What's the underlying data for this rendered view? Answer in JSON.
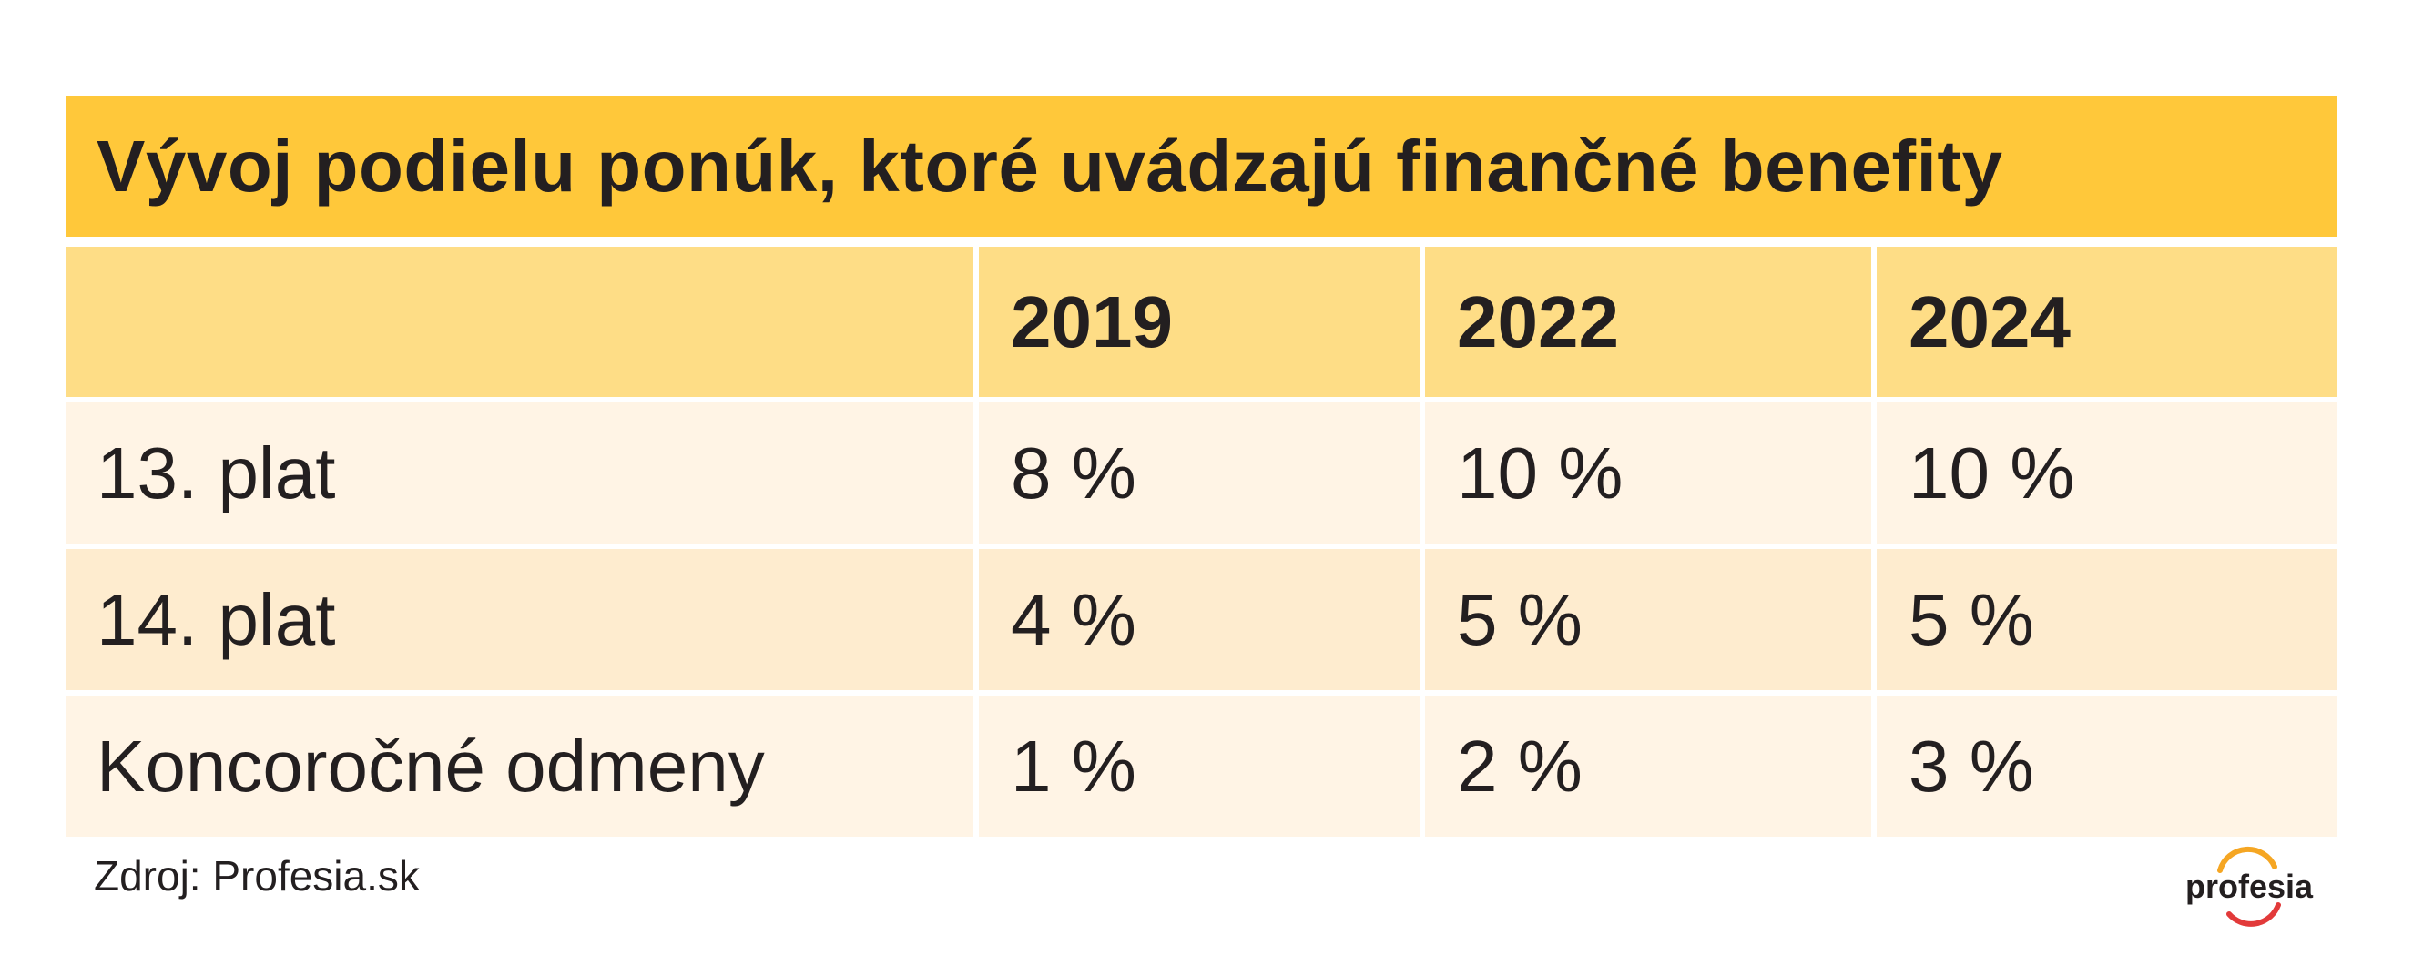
{
  "chart_data": {
    "type": "table",
    "title": "Vývoj podielu ponúk, ktoré uvádzajú finančné benefity",
    "columns": [
      "",
      "2019",
      "2022",
      "2024"
    ],
    "rows": [
      {
        "label": "13. plat",
        "values": [
          "8 %",
          "10 %",
          "10 %"
        ]
      },
      {
        "label": "14. plat",
        "values": [
          "4 %",
          "5 %",
          "5 %"
        ]
      },
      {
        "label": "Koncoročné odmeny",
        "values": [
          "1 %",
          "2 %",
          "3 %"
        ]
      }
    ],
    "source": "Zdroj: Profesia.sk"
  },
  "logo": {
    "text": "profesia",
    "arc_colors": [
      "#f5a623",
      "#e23a3a"
    ]
  },
  "colors": {
    "title_bg": "#ffc83a",
    "header_bg": "#fedd86",
    "row_light": "#fff4e5",
    "row_dark": "#feeccf",
    "text": "#231f20"
  }
}
